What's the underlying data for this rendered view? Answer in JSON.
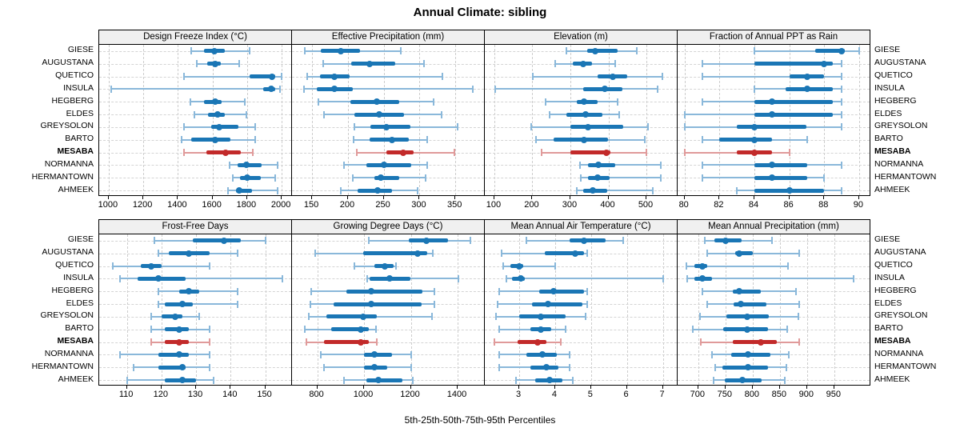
{
  "title": "Annual Climate: sibling",
  "footer": "5th-25th-50th-75th-95th Percentiles",
  "percentile_labels": [
    "5th",
    "25th",
    "50th",
    "75th",
    "95th"
  ],
  "sites": [
    "GIESE",
    "AUGUSTANA",
    "QUETICO",
    "INSULA",
    "HEGBERG",
    "ELDES",
    "GREYSOLON",
    "BARTO",
    "MESABA",
    "NORMANNA",
    "HERMANTOWN",
    "AHMEEK"
  ],
  "highlight_site": "MESABA",
  "colors": {
    "blue": "#1a76b5",
    "blue_light": "#8ab8da",
    "red": "#c22a2a",
    "red_light": "#e09a9a",
    "header_bg": "#f0f0f0",
    "grid": "#cccccc",
    "frame": "#000000"
  },
  "chart_data": [
    {
      "type": "dot-interval",
      "title": "Design Freeze Index (°C)",
      "grid_row": 1,
      "grid_col": 1,
      "xlim": [
        945,
        2055
      ],
      "ticks": [
        1000,
        1200,
        1400,
        1600,
        1800,
        2000
      ],
      "series": [
        {
          "site": "GIESE",
          "p": [
            1475,
            1550,
            1610,
            1670,
            1815
          ]
        },
        {
          "site": "AUGUSTANA",
          "p": [
            1510,
            1570,
            1615,
            1650,
            1755
          ]
        },
        {
          "site": "QUETICO",
          "p": [
            1435,
            1815,
            1945,
            1962,
            2000
          ]
        },
        {
          "site": "INSULA",
          "p": [
            1015,
            1895,
            1940,
            1962,
            1988
          ]
        },
        {
          "site": "HEGBERG",
          "p": [
            1470,
            1550,
            1615,
            1655,
            1785
          ]
        },
        {
          "site": "ELDES",
          "p": [
            1495,
            1575,
            1630,
            1670,
            1795
          ]
        },
        {
          "site": "GREYSOLON",
          "p": [
            1435,
            1590,
            1640,
            1750,
            1845
          ]
        },
        {
          "site": "BARTO",
          "p": [
            1420,
            1475,
            1615,
            1705,
            1845
          ]
        },
        {
          "site": "MESABA",
          "p": [
            1435,
            1565,
            1675,
            1765,
            1835
          ]
        },
        {
          "site": "NORMANNA",
          "p": [
            1700,
            1745,
            1795,
            1885,
            1975
          ]
        },
        {
          "site": "HERMANTOWN",
          "p": [
            1715,
            1760,
            1800,
            1880,
            1960
          ]
        },
        {
          "site": "AHMEEK",
          "p": [
            1690,
            1735,
            1755,
            1830,
            1975
          ]
        }
      ]
    },
    {
      "type": "dot-interval",
      "title": "Effective Precipitation (mm)",
      "grid_row": 1,
      "grid_col": 2,
      "xlim": [
        122,
        390
      ],
      "ticks": [
        150,
        200,
        250,
        300,
        350
      ],
      "series": [
        {
          "site": "GIESE",
          "p": [
            140,
            162,
            190,
            217,
            274
          ]
        },
        {
          "site": "AUGUSTANA",
          "p": [
            166,
            205,
            230,
            266,
            306
          ]
        },
        {
          "site": "QUETICO",
          "p": [
            143,
            161,
            181,
            202,
            332
          ]
        },
        {
          "site": "INSULA",
          "p": [
            139,
            157,
            181,
            207,
            374
          ]
        },
        {
          "site": "HEGBERG",
          "p": [
            159,
            204,
            240,
            272,
            320
          ]
        },
        {
          "site": "ELDES",
          "p": [
            167,
            209,
            244,
            278,
            331
          ]
        },
        {
          "site": "GREYSOLON",
          "p": [
            209,
            231,
            254,
            287,
            353
          ]
        },
        {
          "site": "BARTO",
          "p": [
            208,
            230,
            262,
            285,
            311
          ]
        },
        {
          "site": "MESABA",
          "p": [
            212,
            254,
            277,
            292,
            349
          ]
        },
        {
          "site": "NORMANNA",
          "p": [
            194,
            226,
            250,
            289,
            311
          ]
        },
        {
          "site": "HERMANTOWN",
          "p": [
            207,
            237,
            246,
            272,
            308
          ]
        },
        {
          "site": "AHMEEK",
          "p": [
            190,
            213,
            241,
            261,
            297
          ]
        }
      ]
    },
    {
      "type": "dot-interval",
      "title": "Elevation (m)",
      "grid_row": 1,
      "grid_col": 3,
      "xlim": [
        75,
        580
      ],
      "ticks": [
        100,
        200,
        300,
        400,
        500
      ],
      "series": [
        {
          "site": "GIESE",
          "p": [
            290,
            345,
            365,
            425,
            475
          ]
        },
        {
          "site": "AUGUSTANA",
          "p": [
            260,
            306,
            334,
            358,
            417
          ]
        },
        {
          "site": "QUETICO",
          "p": [
            202,
            372,
            412,
            449,
            542
          ]
        },
        {
          "site": "INSULA",
          "p": [
            103,
            333,
            391,
            437,
            529
          ]
        },
        {
          "site": "HEGBERG",
          "p": [
            234,
            316,
            335,
            372,
            424
          ]
        },
        {
          "site": "ELDES",
          "p": [
            245,
            290,
            339,
            385,
            428
          ]
        },
        {
          "site": "GREYSOLON",
          "p": [
            197,
            299,
            347,
            438,
            505
          ]
        },
        {
          "site": "BARTO",
          "p": [
            210,
            255,
            335,
            400,
            495
          ]
        },
        {
          "site": "MESABA",
          "p": [
            225,
            300,
            395,
            405,
            500
          ]
        },
        {
          "site": "NORMANNA",
          "p": [
            326,
            347,
            374,
            418,
            537
          ]
        },
        {
          "site": "HERMANTOWN",
          "p": [
            327,
            347,
            371,
            403,
            537
          ]
        },
        {
          "site": "AHMEEK",
          "p": [
            317,
            334,
            359,
            397,
            516
          ]
        }
      ]
    },
    {
      "type": "dot-interval",
      "title": "Fraction of Annual PPT as Rain",
      "grid_row": 1,
      "grid_col": 4,
      "xlim": [
        79.6,
        90.6
      ],
      "ticks": [
        80,
        82,
        84,
        86,
        88,
        90
      ],
      "series": [
        {
          "site": "GIESE",
          "p": [
            84,
            87.5,
            89,
            89.2,
            90
          ]
        },
        {
          "site": "AUGUSTANA",
          "p": [
            81,
            84,
            88,
            88.5,
            89
          ]
        },
        {
          "site": "QUETICO",
          "p": [
            81,
            86,
            87,
            88,
            89
          ]
        },
        {
          "site": "INSULA",
          "p": [
            84,
            85.8,
            87,
            88.5,
            89
          ]
        },
        {
          "site": "HEGBERG",
          "p": [
            81,
            84,
            85,
            88.5,
            89
          ]
        },
        {
          "site": "ELDES",
          "p": [
            80,
            84,
            85,
            88.5,
            89
          ]
        },
        {
          "site": "GREYSOLON",
          "p": [
            80,
            83,
            84,
            87,
            89
          ]
        },
        {
          "site": "BARTO",
          "p": [
            81,
            82,
            84,
            85,
            87
          ]
        },
        {
          "site": "MESABA",
          "p": [
            80,
            83,
            84,
            85,
            86
          ]
        },
        {
          "site": "NORMANNA",
          "p": [
            81,
            84,
            85,
            87,
            89
          ]
        },
        {
          "site": "HERMANTOWN",
          "p": [
            81,
            84,
            85,
            87,
            88
          ]
        },
        {
          "site": "AHMEEK",
          "p": [
            83,
            84,
            86,
            88,
            89
          ]
        }
      ]
    },
    {
      "type": "dot-interval",
      "title": "Frost-Free Days",
      "grid_row": 2,
      "grid_col": 1,
      "xlim": [
        102,
        157.5
      ],
      "ticks": [
        110,
        120,
        130,
        140,
        150
      ],
      "series": [
        {
          "site": "GIESE",
          "p": [
            118,
            129,
            138,
            143,
            150
          ]
        },
        {
          "site": "AUGUSTANA",
          "p": [
            119,
            122,
            128,
            134,
            142
          ]
        },
        {
          "site": "QUETICO",
          "p": [
            106,
            114,
            117,
            120,
            134
          ]
        },
        {
          "site": "INSULA",
          "p": [
            108,
            113,
            119,
            127,
            155
          ]
        },
        {
          "site": "HEGBERG",
          "p": [
            119,
            125,
            128,
            131,
            142
          ]
        },
        {
          "site": "ELDES",
          "p": [
            119,
            121,
            126,
            129,
            142
          ]
        },
        {
          "site": "GREYSOLON",
          "p": [
            117,
            120,
            124,
            126,
            131
          ]
        },
        {
          "site": "BARTO",
          "p": [
            117,
            121,
            125,
            128,
            134
          ]
        },
        {
          "site": "MESABA",
          "p": [
            117,
            121,
            125,
            128,
            134
          ]
        },
        {
          "site": "NORMANNA",
          "p": [
            108,
            119,
            125,
            128,
            134
          ]
        },
        {
          "site": "HERMANTOWN",
          "p": [
            112,
            119,
            126,
            127,
            134
          ]
        },
        {
          "site": "AHMEEK",
          "p": [
            110,
            121,
            126,
            130,
            135
          ]
        }
      ]
    },
    {
      "type": "dot-interval",
      "title": "Growing Degree Days (°C)",
      "grid_row": 2,
      "grid_col": 2,
      "xlim": [
        692,
        1513
      ],
      "ticks": [
        800,
        1000,
        1200,
        1400
      ],
      "series": [
        {
          "site": "GIESE",
          "p": [
            1020,
            1190,
            1265,
            1360,
            1455
          ]
        },
        {
          "site": "AUGUSTANA",
          "p": [
            790,
            995,
            1228,
            1270,
            1295
          ]
        },
        {
          "site": "QUETICO",
          "p": [
            960,
            1045,
            1090,
            1125,
            1135
          ]
        },
        {
          "site": "INSULA",
          "p": [
            1012,
            1025,
            1110,
            1200,
            1405
          ]
        },
        {
          "site": "HEGBERG",
          "p": [
            775,
            925,
            1030,
            1250,
            1300
          ]
        },
        {
          "site": "ELDES",
          "p": [
            770,
            870,
            1030,
            1245,
            1300
          ]
        },
        {
          "site": "GREYSOLON",
          "p": [
            765,
            840,
            995,
            1055,
            1290
          ]
        },
        {
          "site": "BARTO",
          "p": [
            745,
            860,
            985,
            1020,
            1050
          ]
        },
        {
          "site": "MESABA",
          "p": [
            755,
            830,
            985,
            1020,
            1055
          ]
        },
        {
          "site": "NORMANNA",
          "p": [
            815,
            1000,
            1045,
            1120,
            1200
          ]
        },
        {
          "site": "HERMANTOWN",
          "p": [
            830,
            1000,
            1045,
            1100,
            1200
          ]
        },
        {
          "site": "AHMEEK",
          "p": [
            915,
            1010,
            1060,
            1165,
            1210
          ]
        }
      ]
    },
    {
      "type": "dot-interval",
      "title": "Mean Annual Air Temperature (°C)",
      "grid_row": 2,
      "grid_col": 3,
      "xlim": [
        2.04,
        7.39
      ],
      "ticks": [
        3,
        4,
        5,
        6,
        7
      ],
      "series": [
        {
          "site": "GIESE",
          "p": [
            3.2,
            4.4,
            4.8,
            5.4,
            5.9
          ]
        },
        {
          "site": "AUGUSTANA",
          "p": [
            2.5,
            3.7,
            4.55,
            4.8,
            4.9
          ]
        },
        {
          "site": "QUETICO",
          "p": [
            2.55,
            2.75,
            3.0,
            3.1,
            4.0
          ]
        },
        {
          "site": "INSULA",
          "p": [
            2.65,
            2.8,
            3.05,
            3.15,
            7.0
          ]
        },
        {
          "site": "HEGBERG",
          "p": [
            2.45,
            3.55,
            3.95,
            4.8,
            4.9
          ]
        },
        {
          "site": "ELDES",
          "p": [
            2.4,
            3.35,
            3.8,
            4.75,
            4.9
          ]
        },
        {
          "site": "GREYSOLON",
          "p": [
            2.35,
            3.0,
            3.6,
            4.3,
            4.85
          ]
        },
        {
          "site": "BARTO",
          "p": [
            2.45,
            3.3,
            3.6,
            3.9,
            4.3
          ]
        },
        {
          "site": "MESABA",
          "p": [
            2.3,
            2.95,
            3.5,
            3.75,
            4.15
          ]
        },
        {
          "site": "NORMANNA",
          "p": [
            2.45,
            3.2,
            3.65,
            4.05,
            4.4
          ]
        },
        {
          "site": "HERMANTOWN",
          "p": [
            2.45,
            3.3,
            3.75,
            4.1,
            4.4
          ]
        },
        {
          "site": "AHMEEK",
          "p": [
            2.9,
            3.45,
            3.85,
            4.2,
            4.5
          ]
        }
      ]
    },
    {
      "type": "dot-interval",
      "title": "Mean Annual Precipitation (mm)",
      "grid_row": 2,
      "grid_col": 4,
      "xlim": [
        662,
        1015
      ],
      "ticks": [
        700,
        750,
        800,
        850,
        900,
        950
      ],
      "series": [
        {
          "site": "GIESE",
          "p": [
            712,
            729,
            750,
            780,
            836
          ]
        },
        {
          "site": "AUGUSTANA",
          "p": [
            716,
            768,
            775,
            800,
            885
          ]
        },
        {
          "site": "QUETICO",
          "p": [
            678,
            693,
            708,
            717,
            865
          ]
        },
        {
          "site": "INSULA",
          "p": [
            680,
            693,
            708,
            725,
            985
          ]
        },
        {
          "site": "HEGBERG",
          "p": [
            708,
            763,
            775,
            815,
            880
          ]
        },
        {
          "site": "ELDES",
          "p": [
            716,
            765,
            778,
            825,
            885
          ]
        },
        {
          "site": "GREYSOLON",
          "p": [
            703,
            751,
            790,
            830,
            884
          ]
        },
        {
          "site": "BARTO",
          "p": [
            690,
            746,
            790,
            828,
            864
          ]
        },
        {
          "site": "MESABA",
          "p": [
            705,
            763,
            815,
            845,
            885
          ]
        },
        {
          "site": "NORMANNA",
          "p": [
            725,
            760,
            792,
            833,
            867
          ]
        },
        {
          "site": "HERMANTOWN",
          "p": [
            731,
            745,
            792,
            828,
            862
          ]
        },
        {
          "site": "AHMEEK",
          "p": [
            728,
            749,
            781,
            817,
            859
          ]
        }
      ]
    }
  ]
}
